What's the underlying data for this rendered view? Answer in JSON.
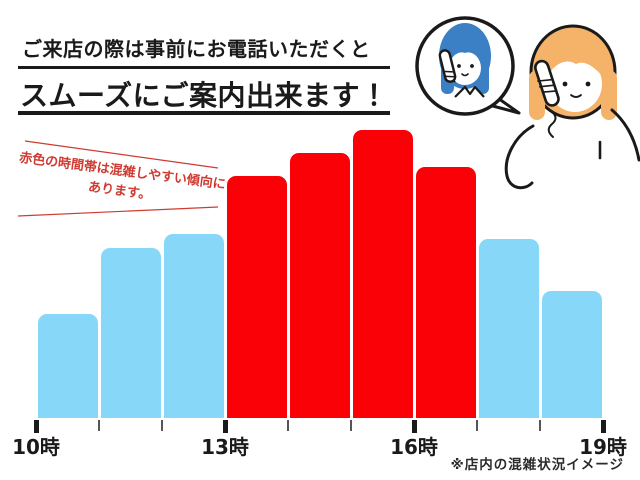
{
  "header": {
    "line1": "ご来店の際は事前にお電話いただくと",
    "line2": "スムーズにご案内出来ます！"
  },
  "annotation": {
    "text_line1": "赤色の時間帯は混雑しやすい傾向に",
    "text_line2": "あります。"
  },
  "footer": {
    "note": "※店内の混雑状況イメージ"
  },
  "icons": {
    "illustration": "two-women-phone-call-illustration",
    "speech_bubble": "speech-bubble",
    "phone": "phone-receiver-icon"
  },
  "colors": {
    "bar_blue": "#87d8f8",
    "bar_red": "#fa0007",
    "annotation_red": "#cf3b32",
    "ink": "#1a1a1a",
    "hair_blue": "#3b80c4",
    "hair_orange": "#f5b369"
  },
  "chart_data": {
    "type": "bar",
    "title": "",
    "xlabel": "",
    "ylabel": "",
    "ylim": [
      0,
      100
    ],
    "categories": [
      "10-11時",
      "11-12時",
      "12-13時",
      "13-14時",
      "14-15時",
      "15-16時",
      "16-17時",
      "17-18時",
      "18-19時"
    ],
    "values": [
      36,
      59,
      64,
      84,
      92,
      100,
      87,
      62,
      44
    ],
    "congested": [
      false,
      false,
      false,
      true,
      true,
      true,
      true,
      false,
      false
    ],
    "tick_hours": [
      10,
      11,
      12,
      13,
      14,
      15,
      16,
      17,
      18,
      19
    ],
    "major_ticks": [
      10,
      13,
      16,
      19
    ],
    "tick_labels": [
      "10時",
      "13時",
      "16時",
      "19時"
    ],
    "legend": "red bars = congestion-prone hours, blue bars = calmer hours",
    "grid": false
  }
}
